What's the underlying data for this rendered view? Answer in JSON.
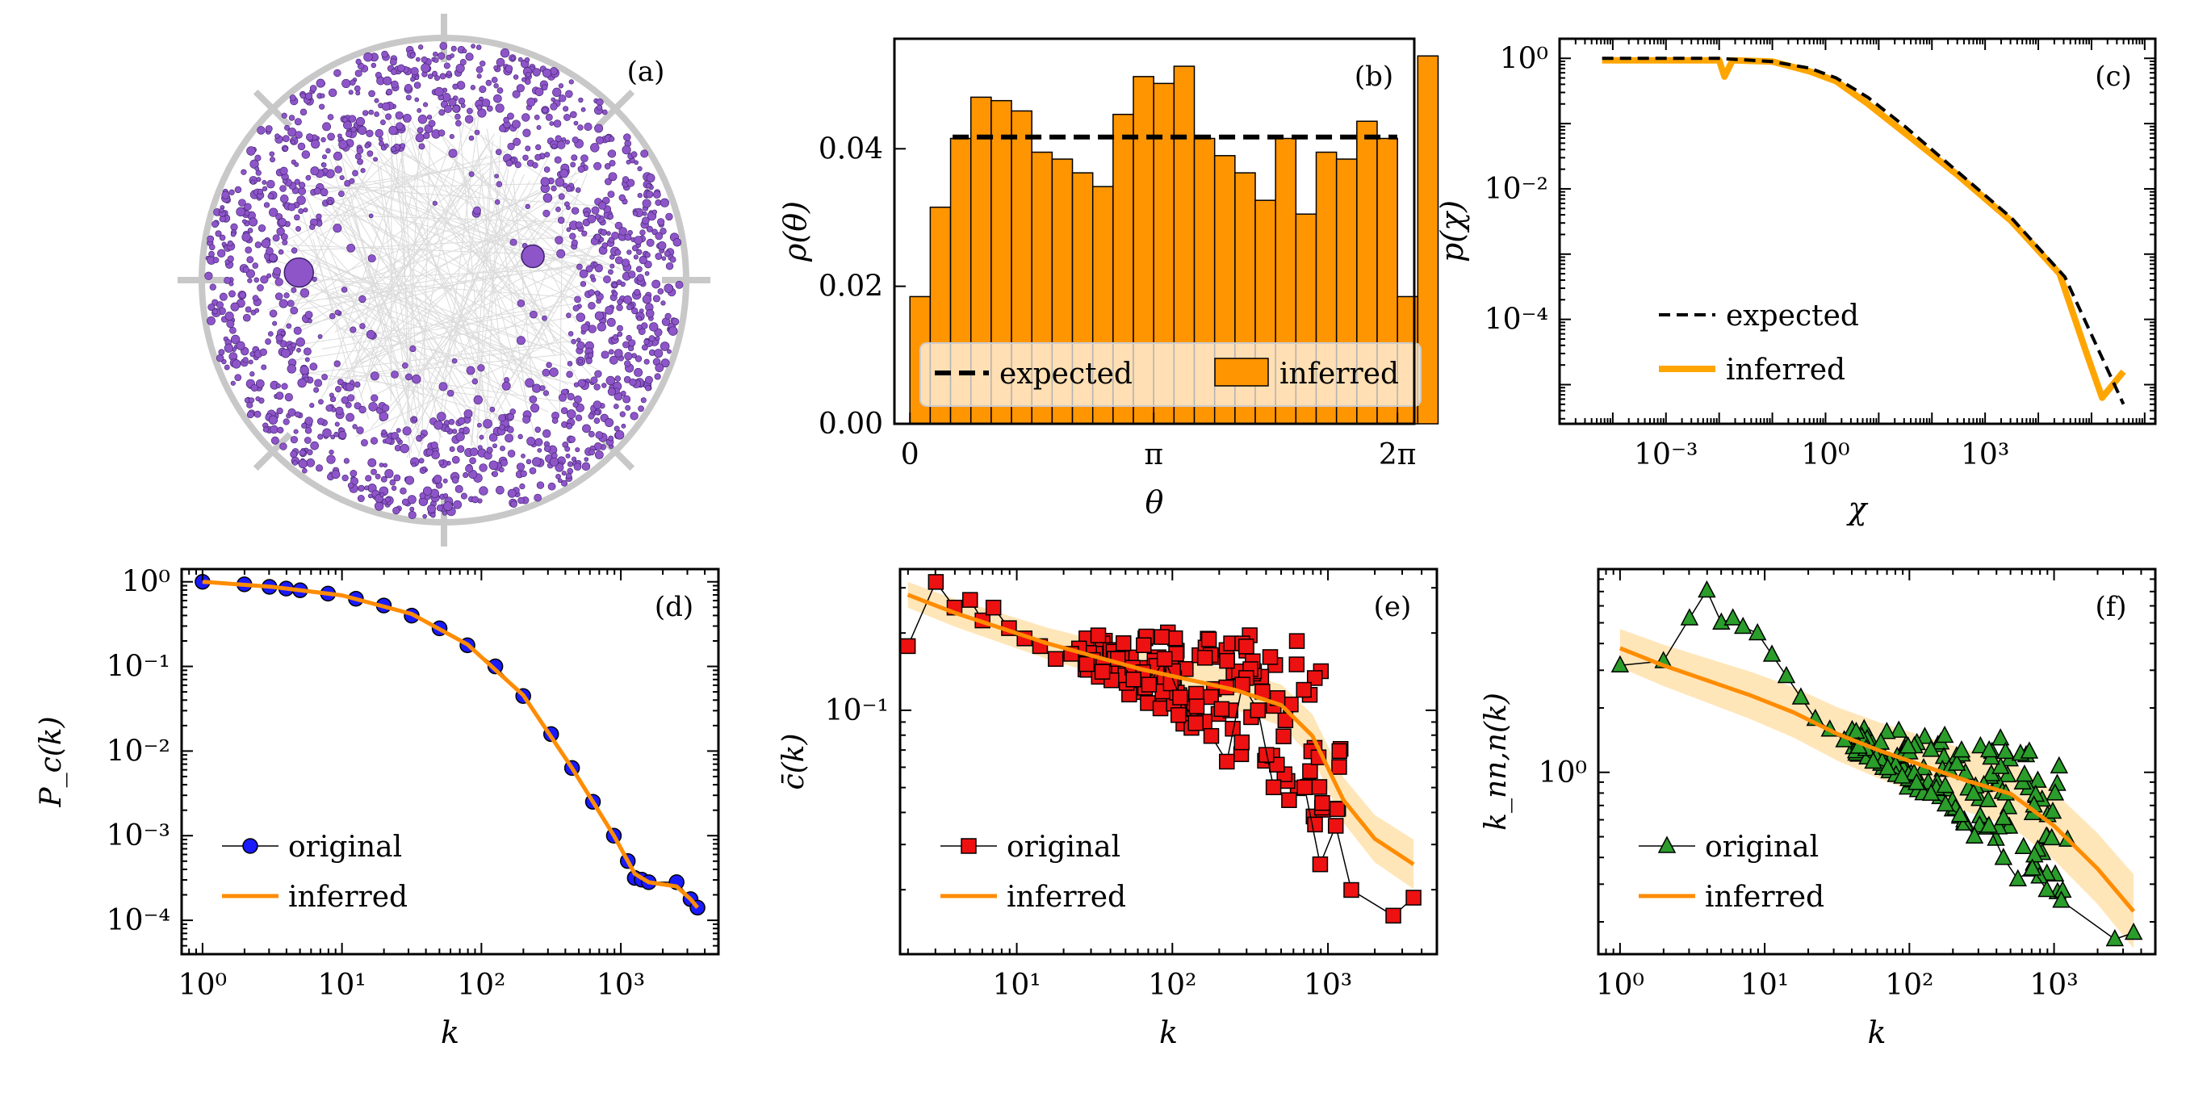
{
  "figure": {
    "title": ""
  },
  "chart_data": [
    {
      "panel": "(a)",
      "type": "scatter",
      "title": "",
      "xlabel": "",
      "ylabel": "",
      "description_labels": [],
      "nodes_radial_range": [
        0.55,
        0.98
      ],
      "hubs": [
        {
          "angle_deg": 183,
          "radius": 0.6,
          "size": "large"
        },
        {
          "angle_deg": 345,
          "radius": 0.38,
          "size": "medium"
        }
      ],
      "colors": {
        "node": "#8e55c9",
        "edge": "#b9b9b9",
        "grid": "#c8c8c8"
      }
    },
    {
      "panel": "(b)",
      "type": "bar",
      "title": "",
      "xlabel": "θ",
      "ylabel": "ρ(θ)",
      "xticks": [
        "0",
        "π",
        "2π"
      ],
      "yticks": [
        "0.00",
        "0.02",
        "0.04"
      ],
      "ylim": [
        0,
        0.056
      ],
      "xlim": [
        -0.2,
        6.5
      ],
      "bin_width": 0.2618,
      "values": [
        0.0185,
        0.0315,
        0.0415,
        0.0475,
        0.047,
        0.0455,
        0.0395,
        0.0385,
        0.0365,
        0.0345,
        0.045,
        0.0505,
        0.0495,
        0.052,
        0.0415,
        0.039,
        0.0365,
        0.0325,
        0.0415,
        0.0305,
        0.0395,
        0.0385,
        0.044,
        0.0415,
        0.0185,
        0.0535
      ],
      "expected": 0.0417,
      "legend": [
        "expected",
        "inferred"
      ],
      "colors": {
        "bar": "#ff9500",
        "expected": "#000000"
      }
    },
    {
      "panel": "(c)",
      "type": "line",
      "title": "",
      "xlabel": "χ",
      "ylabel": "p(χ)",
      "xscale": "log",
      "yscale": "log",
      "xlim_log10": [
        -5.0,
        6.2
      ],
      "ylim_log10": [
        -5.6,
        0.3
      ],
      "xticks": [
        "10⁻³",
        "10⁰",
        "10³"
      ],
      "yticks": [
        "10⁰",
        "10⁻²",
        "10⁻⁴"
      ],
      "series": [
        {
          "name": "expected",
          "style": "dashed",
          "x_log10": [
            -4.2,
            -2.0,
            -1.0,
            -0.3,
            0.2,
            0.8,
            1.5,
            2.5,
            3.5,
            4.5,
            5.6
          ],
          "y_log10": [
            0.0,
            0.0,
            -0.05,
            -0.15,
            -0.3,
            -0.6,
            -1.05,
            -1.75,
            -2.45,
            -3.35,
            -5.3
          ]
        },
        {
          "name": "inferred",
          "style": "solid",
          "x_log10": [
            -4.2,
            -2.0,
            -1.9,
            -1.75,
            -1.0,
            -0.3,
            0.2,
            0.8,
            1.5,
            2.5,
            3.5,
            4.4,
            4.9,
            5.2,
            5.5,
            5.6
          ],
          "y_log10": [
            -0.03,
            -0.03,
            -0.28,
            -0.03,
            -0.05,
            -0.2,
            -0.35,
            -0.7,
            -1.15,
            -1.8,
            -2.5,
            -3.3,
            -4.5,
            -5.2,
            -4.9,
            -4.8
          ]
        }
      ],
      "legend": [
        "expected",
        "inferred"
      ],
      "colors": {
        "expected": "#000000",
        "inferred": "#ffa500"
      }
    },
    {
      "panel": "(d)",
      "type": "line",
      "title": "",
      "xlabel": "k",
      "ylabel": "P_c(k)",
      "xscale": "log",
      "yscale": "log",
      "xlim_log10": [
        -0.15,
        3.7
      ],
      "ylim_log10": [
        -4.4,
        0.15
      ],
      "xticks": [
        "10⁰",
        "10¹",
        "10²",
        "10³"
      ],
      "yticks": [
        "10⁰",
        "10⁻¹",
        "10⁻²",
        "10⁻³",
        "10⁻⁴"
      ],
      "series": [
        {
          "name": "original",
          "marker": "circle",
          "x_log10": [
            0.0,
            0.3,
            0.48,
            0.6,
            0.7,
            0.9,
            1.1,
            1.3,
            1.5,
            1.7,
            1.9,
            2.1,
            2.3,
            2.5,
            2.65,
            2.8,
            2.95,
            3.05,
            3.1,
            3.15,
            3.2,
            3.4,
            3.5,
            3.55
          ],
          "y_log10": [
            0.0,
            -0.03,
            -0.06,
            -0.08,
            -0.1,
            -0.14,
            -0.2,
            -0.28,
            -0.4,
            -0.55,
            -0.75,
            -1.0,
            -1.35,
            -1.8,
            -2.2,
            -2.6,
            -3.0,
            -3.3,
            -3.5,
            -3.52,
            -3.55,
            -3.55,
            -3.75,
            -3.85
          ]
        },
        {
          "name": "inferred",
          "marker": "none",
          "x_log10": [
            0.0,
            0.5,
            1.0,
            1.5,
            1.9,
            2.3,
            2.65,
            2.95,
            3.1,
            3.2,
            3.4,
            3.5,
            3.55
          ],
          "y_log10": [
            0.0,
            -0.06,
            -0.16,
            -0.38,
            -0.74,
            -1.34,
            -2.2,
            -3.0,
            -3.45,
            -3.55,
            -3.6,
            -3.75,
            -3.85
          ]
        }
      ],
      "legend": [
        "original",
        "inferred"
      ],
      "colors": {
        "original": "#1a1aff",
        "inferred": "#ff8c00"
      }
    },
    {
      "panel": "(e)",
      "type": "line",
      "title": "",
      "xlabel": "k",
      "ylabel": "c̄(k)",
      "xscale": "log",
      "yscale": "log",
      "xlim_log10": [
        0.25,
        3.7
      ],
      "ylim_log10": [
        -1.95,
        -0.45
      ],
      "xticks": [
        "10¹",
        "10²",
        "10³"
      ],
      "yticks": [
        "10⁻¹"
      ],
      "series": [
        {
          "name": "original",
          "marker": "square",
          "x_log10": [
            0.3,
            0.48,
            0.6,
            0.7,
            0.78,
            0.85,
            0.95,
            1.05,
            1.15,
            1.25,
            1.35,
            1.45,
            1.55,
            1.65,
            1.75,
            1.85,
            1.95,
            2.05,
            2.15,
            2.25,
            2.35,
            2.45,
            2.55,
            2.65,
            2.75,
            2.85,
            2.95,
            3.05,
            3.15,
            3.42,
            3.55
          ],
          "y_log10": [
            -0.75,
            -0.5,
            -0.6,
            -0.57,
            -0.65,
            -0.6,
            -0.68,
            -0.72,
            -0.75,
            -0.8,
            -0.78,
            -0.82,
            -0.85,
            -0.8,
            -0.88,
            -0.9,
            -0.8,
            -0.95,
            -1.05,
            -1.1,
            -1.2,
            -0.9,
            -1.0,
            -1.3,
            -1.35,
            -1.3,
            -1.6,
            -1.45,
            -1.7,
            -1.8,
            -1.73
          ]
        },
        {
          "name": "inferred",
          "marker": "none",
          "x_log10": [
            0.3,
            0.6,
            0.9,
            1.2,
            1.5,
            1.8,
            2.1,
            2.4,
            2.7,
            2.9,
            3.1,
            3.3,
            3.55
          ],
          "y_log10": [
            -0.55,
            -0.62,
            -0.68,
            -0.74,
            -0.79,
            -0.84,
            -0.88,
            -0.92,
            -0.98,
            -1.1,
            -1.35,
            -1.5,
            -1.6
          ]
        }
      ],
      "legend": [
        "original",
        "inferred"
      ],
      "colors": {
        "original": "#ee1111",
        "inferred": "#ff8c00"
      }
    },
    {
      "panel": "(f)",
      "type": "line",
      "title": "",
      "xlabel": "k",
      "ylabel": "k_nn,n(k)",
      "xscale": "log",
      "yscale": "log",
      "xlim_log10": [
        -0.15,
        3.7
      ],
      "ylim_log10": [
        -0.85,
        0.95
      ],
      "xticks": [
        "10⁰",
        "10¹",
        "10²",
        "10³"
      ],
      "yticks": [
        "10⁰"
      ],
      "series": [
        {
          "name": "original",
          "marker": "triangle",
          "x_log10": [
            0.0,
            0.3,
            0.48,
            0.6,
            0.7,
            0.78,
            0.85,
            0.95,
            1.05,
            1.15,
            1.25,
            1.35,
            1.45,
            1.55,
            1.65,
            1.75,
            1.85,
            1.95,
            2.05,
            2.15,
            2.25,
            2.35,
            2.45,
            2.55,
            2.65,
            2.75,
            2.85,
            2.95,
            3.05,
            3.42,
            3.55
          ],
          "y_log10": [
            0.5,
            0.52,
            0.72,
            0.85,
            0.7,
            0.72,
            0.68,
            0.65,
            0.55,
            0.45,
            0.35,
            0.25,
            0.2,
            0.15,
            0.12,
            0.05,
            0.02,
            -0.02,
            -0.05,
            -0.1,
            -0.15,
            -0.2,
            -0.3,
            -0.25,
            -0.4,
            -0.5,
            -0.45,
            -0.55,
            -0.6,
            -0.78,
            -0.75
          ]
        },
        {
          "name": "inferred",
          "marker": "none",
          "x_log10": [
            0.0,
            0.3,
            0.6,
            0.9,
            1.2,
            1.5,
            1.8,
            2.1,
            2.4,
            2.7,
            3.0,
            3.3,
            3.55
          ],
          "y_log10": [
            0.58,
            0.5,
            0.43,
            0.36,
            0.28,
            0.18,
            0.1,
            0.03,
            -0.04,
            -0.1,
            -0.25,
            -0.45,
            -0.65
          ]
        }
      ],
      "legend": [
        "original",
        "inferred"
      ],
      "colors": {
        "original": "#2a9d2a",
        "inferred": "#ff8c00"
      }
    }
  ]
}
